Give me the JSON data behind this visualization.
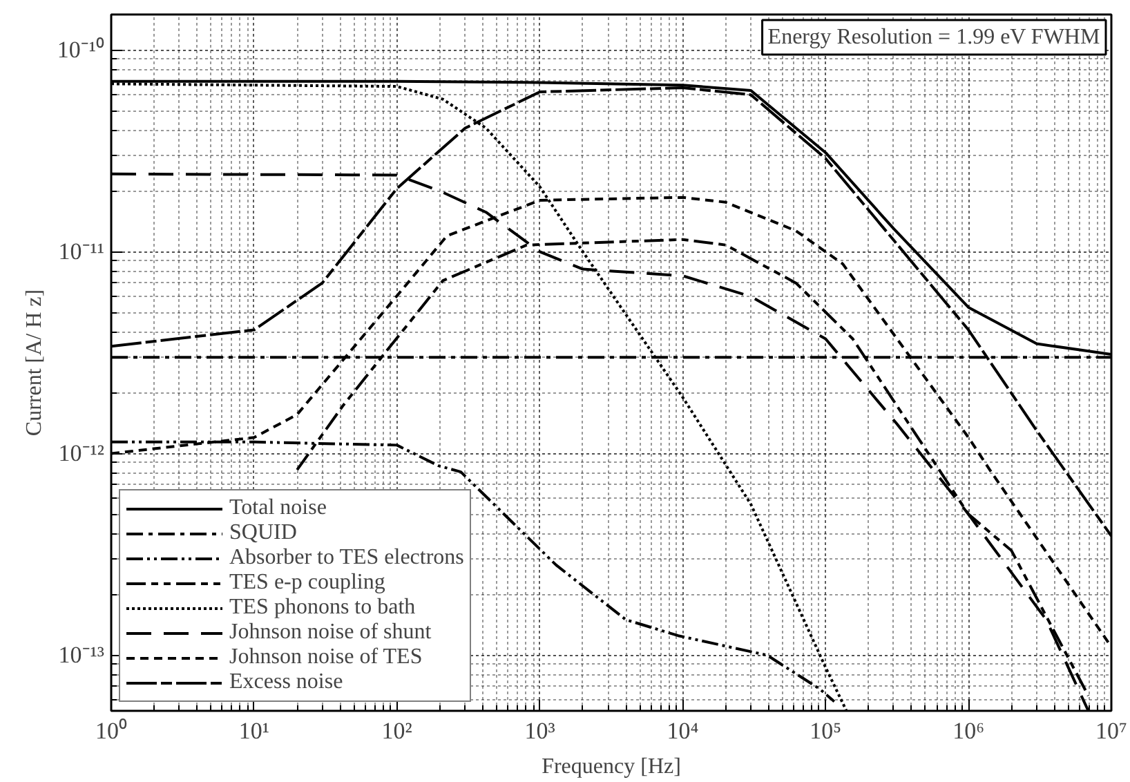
{
  "chart_data": {
    "type": "line",
    "xlabel": "Frequency [Hz]",
    "ylabel": "Current [A/ H z]",
    "log": "xy",
    "grid": true,
    "legend": "bottom left",
    "annotations": [
      "Energy Resolution = 1.99 eV FWHM"
    ],
    "xlim": [
      1,
      10000000
    ],
    "ylim": [
      5.3e-14,
      1.5e-10
    ],
    "xticks": [
      {
        "value": 1,
        "label": "10⁰"
      },
      {
        "value": 10,
        "label": "10¹"
      },
      {
        "value": 100,
        "label": "10²"
      },
      {
        "value": 1000,
        "label": "10³"
      },
      {
        "value": 10000,
        "label": "10⁴"
      },
      {
        "value": 100000,
        "label": "10⁵"
      },
      {
        "value": 1000000,
        "label": "10⁶"
      },
      {
        "value": 10000000,
        "label": "10⁷"
      }
    ],
    "yticks": [
      {
        "value": 1e-13,
        "label": "10⁻¹³"
      },
      {
        "value": 1e-12,
        "label": "10⁻¹²"
      },
      {
        "value": 1e-11,
        "label": "10⁻¹¹"
      },
      {
        "value": 1e-10,
        "label": "10⁻¹⁰"
      }
    ],
    "series": [
      {
        "name": "Total noise",
        "color": "#000000",
        "line_style": "solid",
        "x": [
          1,
          100,
          1000,
          10000,
          30000,
          100000,
          300000,
          1000000,
          3000000,
          10000000
        ],
        "values": [
          7e-11,
          7e-11,
          6.9e-11,
          6.7e-11,
          6.3e-11,
          3.1e-11,
          1.3e-11,
          5.3e-12,
          3.5e-12,
          3.1e-12
        ]
      },
      {
        "name": "SQUID",
        "color": "#000000",
        "line_style": "dashdot",
        "x": [
          1,
          10000000
        ],
        "values": [
          3e-12,
          3e-12
        ]
      },
      {
        "name": "Absorber to TES electrons",
        "color": "#000000",
        "line_style": "dashdotdot",
        "x": [
          1,
          10,
          100,
          195,
          280,
          1300,
          4000,
          9300,
          39000,
          91000,
          115000
        ],
        "values": [
          1.14e-12,
          1.14e-12,
          1.1e-12,
          8.7e-13,
          8.1e-13,
          2.8e-13,
          1.5e-13,
          1.25e-13,
          1e-13,
          6.8e-14,
          5.9e-14
        ]
      },
      {
        "name": "TES e-p coupling",
        "color": "#000000",
        "line_style": "longdashdot",
        "x": [
          20,
          42,
          78,
          210,
          810,
          10000,
          20000,
          62000,
          155000,
          1000000,
          2000000,
          6900000
        ],
        "values": [
          8.3e-13,
          1.73e-12,
          3e-12,
          7.2e-12,
          1.08e-11,
          1.15e-11,
          1.08e-11,
          7e-12,
          3.7e-12,
          5e-13,
          3.3e-13,
          6.3e-14
        ]
      },
      {
        "name": "TES phonons to bath",
        "color": "#000000",
        "line_style": "dotted",
        "x": [
          1,
          100,
          210,
          420,
          1000,
          2000,
          10000,
          30000,
          100000,
          140000
        ],
        "values": [
          6.8e-11,
          6.6e-11,
          5.7e-11,
          4.1e-11,
          2.1e-11,
          1e-11,
          1.9e-12,
          5.6e-13,
          8.7e-14,
          5.3e-14
        ]
      },
      {
        "name": "Johnson noise of shunt",
        "color": "#000000",
        "line_style": "longdash",
        "x": [
          1,
          100,
          200,
          420,
          1000,
          2000,
          10000,
          30000,
          100000,
          316000,
          1000000,
          3500000,
          6900000
        ],
        "values": [
          2.43e-11,
          2.4e-11,
          2e-11,
          1.57e-11,
          1e-11,
          8.2e-12,
          7.6e-12,
          6e-12,
          3.7e-12,
          1.4e-12,
          5e-13,
          1.5e-13,
          5.3e-14
        ]
      },
      {
        "name": "Johnson noise of TES",
        "color": "#000000",
        "line_style": "dashed",
        "x": [
          1,
          10,
          20,
          105,
          224,
          1000,
          10000,
          20000,
          62000,
          132000,
          1000000,
          1410000,
          10000000
        ],
        "values": [
          1e-12,
          1.2e-12,
          1.56e-12,
          6.3e-12,
          1.2e-11,
          1.8e-11,
          1.86e-11,
          1.76e-11,
          1.27e-11,
          8.7e-12,
          1.2e-12,
          8.3e-13,
          1.1e-13
        ]
      },
      {
        "name": "Excess noise",
        "color": "#000000",
        "line_style": "longdashdash",
        "x": [
          1,
          10,
          30,
          100,
          300,
          1000,
          10000,
          30000,
          100000,
          1000000,
          3000000,
          10000000
        ],
        "values": [
          3.4e-12,
          4.1e-12,
          7e-12,
          2.06e-11,
          4.1e-11,
          6.2e-11,
          6.5e-11,
          6e-11,
          2.9e-11,
          4.1e-12,
          1.3e-12,
          3.9e-13
        ]
      }
    ]
  }
}
